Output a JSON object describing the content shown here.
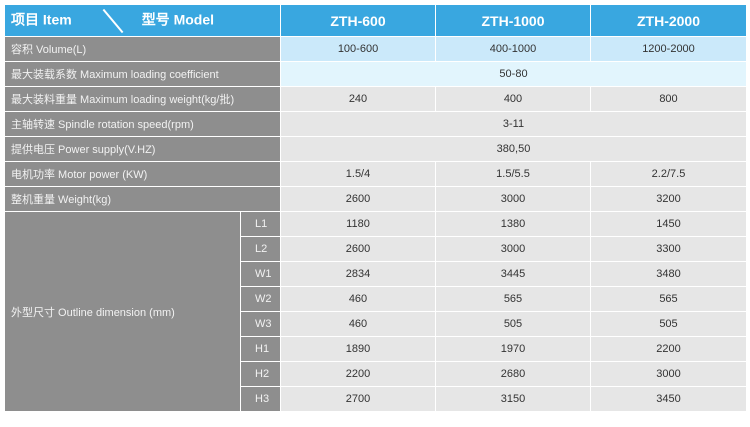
{
  "header": {
    "item": "项目 Item",
    "model": "型号 Model",
    "models": [
      "ZTH-600",
      "ZTH-1000",
      "ZTH-2000"
    ]
  },
  "rows": [
    {
      "label": "容积 Volume(L)",
      "values": [
        "100-600",
        "400-1000",
        "1200-2000"
      ]
    },
    {
      "label": "最大装载系数 Maximum loading coefficient",
      "merged": "50-80"
    },
    {
      "label": "最大装料重量 Maximum loading weight(kg/批)",
      "values": [
        "240",
        "400",
        "800"
      ]
    },
    {
      "label": "主轴转速 Spindle rotation speed(rpm)",
      "merged": "3-11"
    },
    {
      "label": "提供电压 Power supply(V.HZ)",
      "merged": "380,50"
    },
    {
      "label": "电机功率 Motor power (KW)",
      "values": [
        "1.5/4",
        "1.5/5.5",
        "2.2/7.5"
      ]
    },
    {
      "label": "整机重量 Weight(kg)",
      "values": [
        "2600",
        "3000",
        "3200"
      ]
    }
  ],
  "outline": {
    "label": "外型尺寸 Outline dimension (mm)",
    "sub": [
      {
        "label": "L1",
        "values": [
          "1180",
          "1380",
          "1450"
        ]
      },
      {
        "label": "L2",
        "values": [
          "2600",
          "3000",
          "3300"
        ]
      },
      {
        "label": "W1",
        "values": [
          "2834",
          "3445",
          "3480"
        ]
      },
      {
        "label": "W2",
        "values": [
          "460",
          "565",
          "565"
        ]
      },
      {
        "label": "W3",
        "values": [
          "460",
          "505",
          "505"
        ]
      },
      {
        "label": "H1",
        "values": [
          "1890",
          "1970",
          "2200"
        ]
      },
      {
        "label": "H2",
        "values": [
          "2200",
          "2680",
          "3000"
        ]
      },
      {
        "label": "H3",
        "values": [
          "2700",
          "3150",
          "3450"
        ]
      }
    ]
  },
  "colors": {
    "header": "#39a7e0",
    "label_bg": "#8e8e8e",
    "cell_bg": "#e6e6e6"
  }
}
